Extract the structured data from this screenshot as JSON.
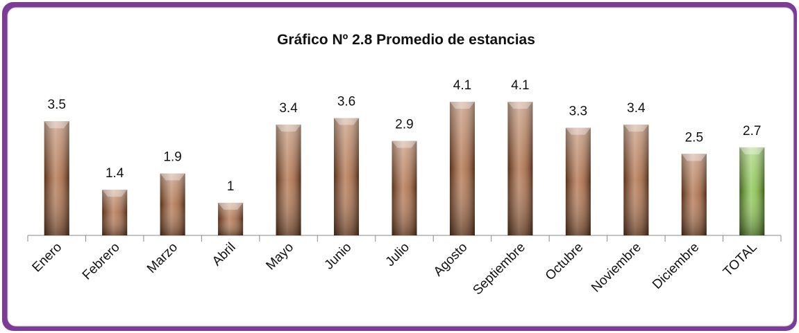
{
  "chart_data": {
    "type": "bar",
    "title": "Gráfico Nº 2.8 Promedio de estancias",
    "categories": [
      "Enero",
      "Febrero",
      "Marzo",
      "Abril",
      "Mayo",
      "Junio",
      "Julio",
      "Agosto",
      "Septiembre",
      "Octubre",
      "Noviembre",
      "Diciembre",
      "TOTAL"
    ],
    "values": [
      3.5,
      1.4,
      1.9,
      1,
      3.4,
      3.6,
      2.9,
      4.1,
      4.1,
      3.3,
      3.4,
      2.5,
      2.7
    ],
    "colors": [
      "#a0582c",
      "#a0582c",
      "#a0582c",
      "#a0582c",
      "#a0582c",
      "#a0582c",
      "#a0582c",
      "#a0582c",
      "#a0582c",
      "#a0582c",
      "#a0582c",
      "#a0582c",
      "#74b830"
    ]
  }
}
